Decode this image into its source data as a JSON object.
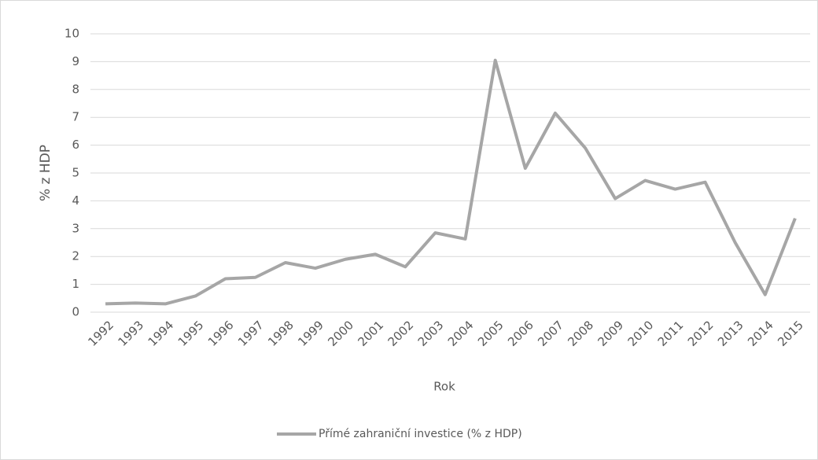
{
  "chart_data": {
    "type": "line",
    "x_label": "Rok",
    "y_label": "% z HDP",
    "categories": [
      "1992",
      "1993",
      "1994",
      "1995",
      "1996",
      "1997",
      "1998",
      "1999",
      "2000",
      "2001",
      "2002",
      "2003",
      "2004",
      "2005",
      "2006",
      "2007",
      "2008",
      "2009",
      "2010",
      "2011",
      "2012",
      "2013",
      "2014",
      "2015"
    ],
    "series": [
      {
        "name": "Přímé zahraniční investice (% z HDP)",
        "color": "#a6a6a6",
        "values": [
          0.3,
          0.33,
          0.3,
          0.58,
          1.2,
          1.25,
          1.78,
          1.58,
          1.9,
          2.08,
          1.63,
          2.85,
          2.63,
          9.05,
          5.17,
          7.15,
          5.9,
          4.08,
          4.73,
          4.42,
          4.67,
          2.5,
          0.63,
          3.37
        ]
      }
    ],
    "ylim": [
      0,
      10
    ],
    "yticks": [
      0,
      1,
      2,
      3,
      4,
      5,
      6,
      7,
      8,
      9,
      10
    ],
    "grid": true,
    "legend": "bottom"
  }
}
